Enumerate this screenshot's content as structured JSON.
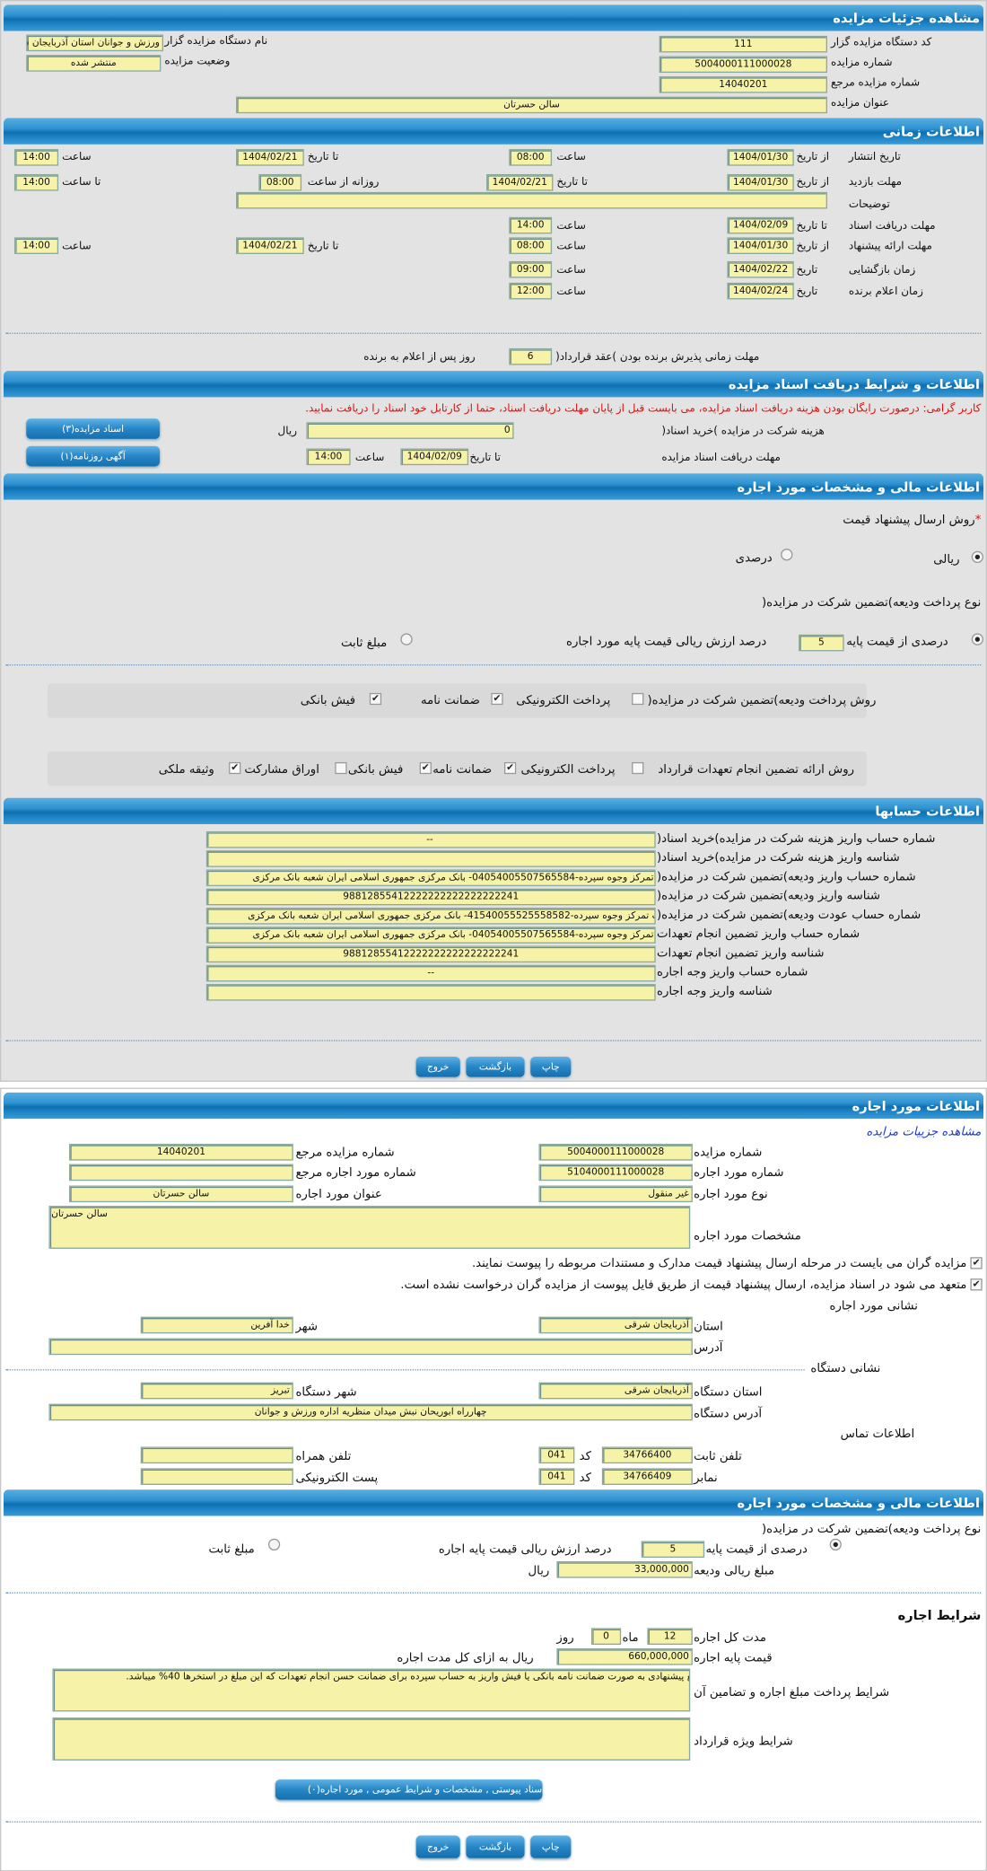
{
  "colors": {
    "header_blue": "#1b82c4",
    "field_yellow": "#f6f3a8",
    "panel_gray": "#e3e3e3",
    "warning_red": "#e01010",
    "link_blue": "#1a3cd8"
  },
  "s1": {
    "title": "مشاهده جزئیات مزایده",
    "org_code_label": "کد دستگاه مزایده گزار",
    "org_code": "111",
    "org_name_label": "نام دستگاه مزایده گزار",
    "org_name": "ورزش و جوانان استان آذربایجان شرقی",
    "auction_no_label": "شماره مزایده",
    "auction_no": "5004000111000028",
    "status_label": "وضعیت مزایده",
    "status": "منتشر شده",
    "ref_label": "شماره مزایده مرجع",
    "ref": "14040201",
    "title_label": "عنوان مزایده",
    "auction_title": "سالن حسرتان"
  },
  "s2": {
    "title": "اطلاعات زمانی",
    "from_date": "از تاریخ",
    "to_date": "تا تاریخ",
    "hour": "ساعت",
    "to_hour": "تا ساعت",
    "daily_from_hour": "روزانه از ساعت",
    "date": "تاریخ",
    "publish_label": "تاریخ انتشار",
    "publish_from": "1404/01/30",
    "publish_from_time": "08:00",
    "publish_to": "1404/02/21",
    "publish_to_time": "14:00",
    "visit_label": "مهلت بازدید",
    "visit_from": "1404/01/30",
    "visit_to": "1404/02/21",
    "visit_daily_from": "08:00",
    "visit_daily_to": "14:00",
    "desc_label": "توضیحات",
    "desc": "",
    "docs_label": "مهلت دریافت اسناد",
    "docs_to": "1404/02/09",
    "docs_to_time": "14:00",
    "offer_label": "مهلت ارائه پیشنهاد",
    "offer_from": "1404/01/30",
    "offer_from_time": "08:00",
    "offer_to": "1404/02/21",
    "offer_to_time": "14:00",
    "open_label": "زمان بازگشایی",
    "open_date": "1404/02/22",
    "open_time": "09:00",
    "winner_label": "زمان اعلام برنده",
    "winner_date": "1404/02/24",
    "winner_time": "12:00",
    "accept_label": "مهلت زمانی پذیرش برنده بودن )عقد قرارداد(",
    "accept_days": "6",
    "accept_suffix": "روز پس از اعلام به برنده"
  },
  "s3": {
    "title": "اطلاعات و شرایط دریافت اسناد مزایده",
    "warning": "کاربر گرامی: درصورت رایگان بودن هزینه دریافت اسناد مزایده، می بایست قبل از پایان مهلت دریافت اسناد، حتما از کارتابل خود اسناد را دریافت نمایید.",
    "fee_label": "هزینه شرکت در مزایده )خرید اسناد(",
    "fee": "0",
    "rial": "ریال",
    "deadline_label": "مهلت دریافت اسناد مزایده",
    "to_date": "تا تاریخ",
    "deadline_date": "1404/02/09",
    "hour": "ساعت",
    "deadline_time": "14:00",
    "docs_button": "اسناد مزایده(۳)",
    "ad_button": "آگهی روزنامه(۱)"
  },
  "s4": {
    "title": "اطلاعات مالی و مشخصات مورد اجاره",
    "price_method_label": "روش ارسال پیشنهاد قیمت",
    "required": "*",
    "rial_option": "ریالی",
    "percent_option": "درصدی",
    "deposit_type_label": "نوع پرداخت ودیعه)تضمین شرکت در مزایده(",
    "percent_of_base": "درصدی از قیمت پایه",
    "deposit_percent": "5",
    "percent_suffix": "درصد ارزش ریالی قیمت پایه مورد اجاره",
    "fixed_amount": "مبلغ ثابت",
    "deposit_method_label": "روش پرداخت ودیعه)تضمین شرکت در مزایده(",
    "deposit_methods": [
      {
        "label": "پرداخت الکترونیکی",
        "checked": false
      },
      {
        "label": "ضمانت نامه",
        "checked": true
      },
      {
        "label": "فیش بانکی",
        "checked": true
      }
    ],
    "guarantee_label": "روش ارائه تضمین انجام تعهدات قرارداد",
    "guarantee_methods": [
      {
        "label": "پرداخت الکترونیکی",
        "checked": false
      },
      {
        "label": "ضمانت نامه",
        "checked": true
      },
      {
        "label": "فیش بانکی",
        "checked": true
      },
      {
        "label": "اوراق مشارکت",
        "checked": false
      },
      {
        "label": "وثیقه ملکی",
        "checked": true
      }
    ]
  },
  "s5": {
    "title": "اطلاعات حسابها",
    "rows": [
      {
        "label": "شماره حساب واریز هزینه شرکت در مزایده)خرید اسناد(",
        "value": "--"
      },
      {
        "label": "شناسه واریز هزینه شرکت در مزایده)خرید اسناد(",
        "value": ""
      },
      {
        "label": "شماره حساب واریز ودیعه)تضمین شرکت در مزایده(",
        "value": "حساب تمرکز وجوه سپرده-04054005507565584- بانک مرکزی جمهوری اسلامی ایران شعبه بانک مرکزی"
      },
      {
        "label": "شناسه واریز ودیعه)تضمین شرکت در مزایده(",
        "value": "98812855412222222222222222241"
      },
      {
        "label": "شماره حساب عودت ودیعه)تضمین شرکت در مزایده(",
        "value": "حساب تمرکز وجوه سپرده-41540055525558582- بانک مرکزی جمهوری اسلامی ایران شعبه بانک مرکزی"
      },
      {
        "label": "شماره حساب واریز تضمین انجام تعهدات",
        "value": "حساب تمرکز وجوه سپرده-04054005507565584- بانک مرکزی جمهوری اسلامی ایران شعبه بانک مرکزی"
      },
      {
        "label": "شناسه واریز تضمین انجام تعهدات",
        "value": "98812855412222222222222222241"
      },
      {
        "label": "شماره حساب واریز وجه اجاره",
        "value": "--"
      },
      {
        "label": "شناسه واریز وجه اجاره",
        "value": ""
      }
    ]
  },
  "buttons": {
    "print": "چاپ",
    "back": "بازگشت",
    "exit": "خروج"
  },
  "lease": {
    "title": "اطلاعات مورد اجاره",
    "view_details_link": "مشاهده جزییات مزایده",
    "auction_no_label": "شماره مزایده",
    "auction_no": "5004000111000028",
    "ref_label": "شماره مزایده مرجع",
    "ref": "14040201",
    "item_no_label": "شماره مورد اجاره",
    "item_no": "5104000111000028",
    "item_ref_label": "شماره مورد اجاره مرجع",
    "item_ref": "",
    "type_label": "نوع مورد اجاره",
    "type": "غیر منقول",
    "item_title_label": "عنوان مورد اجاره",
    "item_title": "سالن حسرتان",
    "spec_label": "مشخصات مورد اجاره",
    "spec": "سالن حسرتان",
    "notice1": "مزایده گران می بایست در مرحله ارسال پیشنهاد قیمت مدارک و مستندات مربوطه را پیوست نمایند.",
    "notice2": "متعهد می شود در اسناد مزایده، ارسال پیشنهاد قیمت از طریق فایل پیوست از مزایده گران درخواست نشده است.",
    "item_address_title": "نشانی مورد اجاره",
    "province_label": "استان",
    "province": "آذربایجان شرقی",
    "city_label": "شهر",
    "city": "خدا آفرین",
    "address_label": "آدرس",
    "address": "",
    "org_address_title": "نشانی دستگاه",
    "org_province_label": "استان دستگاه",
    "org_province": "آذربایجان شرقی",
    "org_city_label": "شهر دستگاه",
    "org_city": "تبریز",
    "org_address_label": "آدرس دستگاه",
    "org_address": "چهارراه ابوریحان نبش میدان منظریه اداره ورزش و جوانان",
    "contact_title": "اطلاعات تماس",
    "phone_label": "تلفن ثابت",
    "phone": "34766400",
    "code_label": "کد",
    "phone_code": "041",
    "mobile_label": "تلفن همراه",
    "mobile": "",
    "fax_label": "نمابر",
    "fax": "34766409",
    "fax_code": "041",
    "email_label": "پست الکترونیکی",
    "email": ""
  },
  "lease_fin": {
    "title": "اطلاعات مالی و مشخصات مورد اجاره",
    "deposit_type_label": "نوع پرداخت ودیعه)تضمین شرکت در مزایده(",
    "percent_of_base": "درصدی از قیمت پایه",
    "deposit_percent": "5",
    "percent_suffix": "درصد ارزش ریالی قیمت پایه اجاره",
    "fixed_amount": "مبلغ ثابت",
    "deposit_amount_label": "مبلغ ریالی ودیعه",
    "deposit_amount": "33,000,000",
    "rial": "ریال",
    "terms_title": "شرایط اجاره",
    "duration_label": "مدت کل اجاره",
    "months": "12",
    "month_label": "ماه",
    "days": "0",
    "day_label": "روز",
    "base_price_label": "قیمت پایه اجاره",
    "base_price": "660,000,000",
    "base_price_suffix": "ریال به ازای کل مدت اجاره",
    "payment_terms_label": "شرایط پرداخت مبلغ اجاره و تضامین آن",
    "payment_terms": "مبلغ پیشنهادی به صورت ضمانت نامه بانکی یا فیش واریز به حساب سپرده برای ضمانت حسن انجام تعهدات که این مبلغ در استخرها 40% میباشد.",
    "special_terms_label": "شرایط ویژه قرارداد",
    "special_terms": "",
    "attachments_button": "اسناد پیوستی , مشخصات و شرایط عمومی , مورد اجاره(۰)"
  }
}
